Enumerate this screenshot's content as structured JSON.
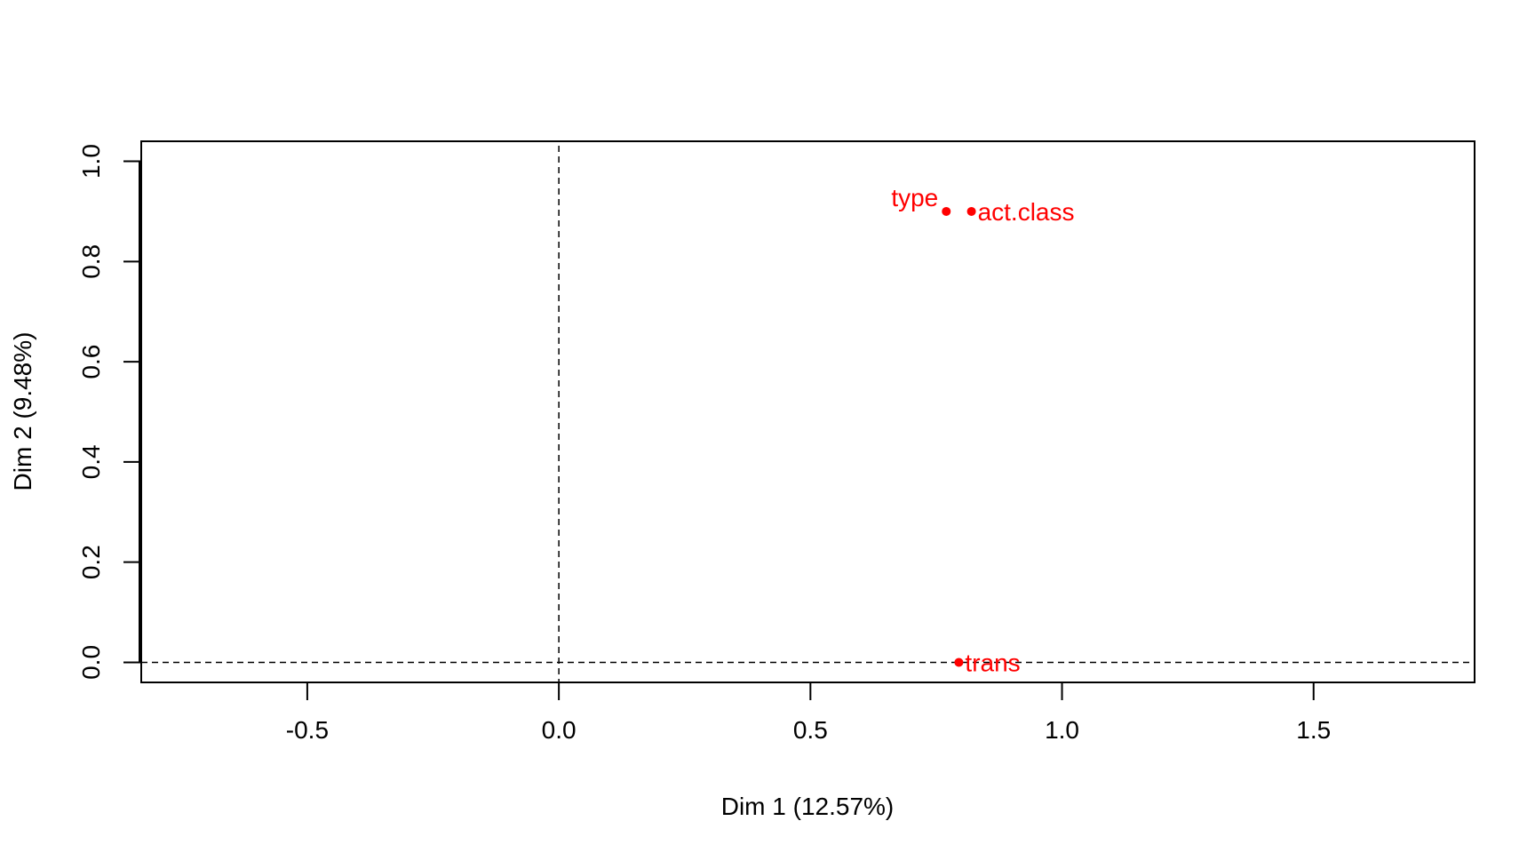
{
  "chart_data": {
    "type": "scatter",
    "title": "",
    "xlabel": "Dim 1 (12.57%)",
    "ylabel": "Dim 2 (9.48%)",
    "xlim": [
      -0.83,
      1.82
    ],
    "ylim": [
      -0.04,
      1.04
    ],
    "xticks": [
      -0.5,
      0.0,
      0.5,
      1.0,
      1.5
    ],
    "yticks": [
      0.0,
      0.2,
      0.4,
      0.6,
      0.8,
      1.0
    ],
    "xtick_labels": [
      "-0.5",
      "0.0",
      "0.5",
      "1.0",
      "1.5"
    ],
    "ytick_labels": [
      "0.0",
      "0.2",
      "0.4",
      "0.6",
      "0.8",
      "1.0"
    ],
    "grid": false,
    "reference_lines": {
      "x": 0,
      "y": 0,
      "style": "dashed"
    },
    "point_color": "#ff0000",
    "points": [
      {
        "label": "type",
        "x": 0.77,
        "y": 0.9,
        "label_side": "left"
      },
      {
        "label": "act.class",
        "x": 0.82,
        "y": 0.9,
        "label_side": "right"
      },
      {
        "label": "trans",
        "x": 0.795,
        "y": 0.0,
        "label_side": "right"
      }
    ]
  }
}
